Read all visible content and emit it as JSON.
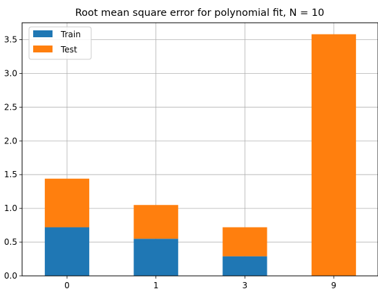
{
  "chart_data": {
    "type": "bar",
    "stacked": true,
    "title": "Root mean square error for polynomial fit, N = 10",
    "xlabel": "",
    "ylabel": "",
    "categories": [
      "0",
      "1",
      "3",
      "9"
    ],
    "series": [
      {
        "name": "Train",
        "color": "#1f77b4",
        "values": [
          0.72,
          0.55,
          0.29,
          0.0
        ]
      },
      {
        "name": "Test",
        "color": "#ff7f0e",
        "values": [
          0.72,
          0.5,
          0.43,
          3.58
        ]
      }
    ],
    "ylim": [
      0,
      3.75
    ],
    "yticks": [
      "0.0",
      "0.5",
      "1.0",
      "1.5",
      "2.0",
      "2.5",
      "3.0",
      "3.5"
    ],
    "grid": true,
    "legend_position": "top-left"
  }
}
